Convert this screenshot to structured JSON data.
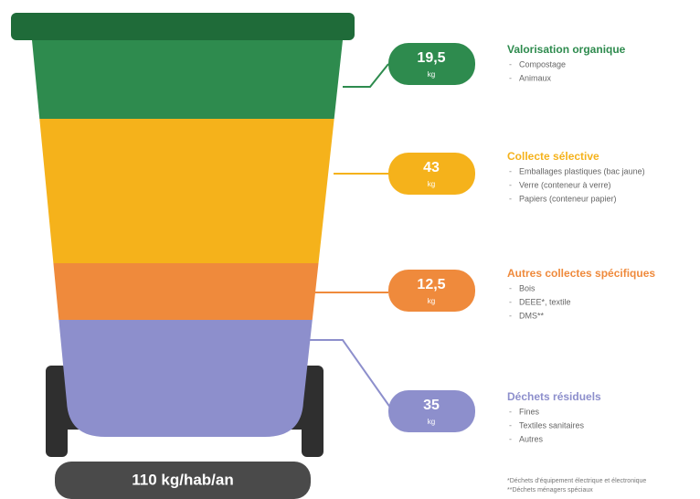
{
  "total": "110 kg/hab/an",
  "sections": [
    {
      "value": "19,5",
      "unit": "kg",
      "title": "Valorisation organique",
      "items": [
        "Compostage",
        "Animaux"
      ]
    },
    {
      "value": "43",
      "unit": "kg",
      "title": "Collecte sélective",
      "items": [
        "Emballages plastiques (bac jaune)",
        "Verre (conteneur à verre)",
        "Papiers (conteneur papier)"
      ]
    },
    {
      "value": "12,5",
      "unit": "kg",
      "title": "Autres collectes spécifiques",
      "items": [
        "Bois",
        "DEEE*, textile",
        "DMS**"
      ]
    },
    {
      "value": "35",
      "unit": "kg",
      "title": "Déchets résiduels",
      "items": [
        "Fines",
        "Textiles sanitaires",
        "Autres"
      ]
    }
  ],
  "footnotes": [
    "*Déchets d'équipement électrique et électronique",
    "**Déchets ménagers spéciaux"
  ]
}
